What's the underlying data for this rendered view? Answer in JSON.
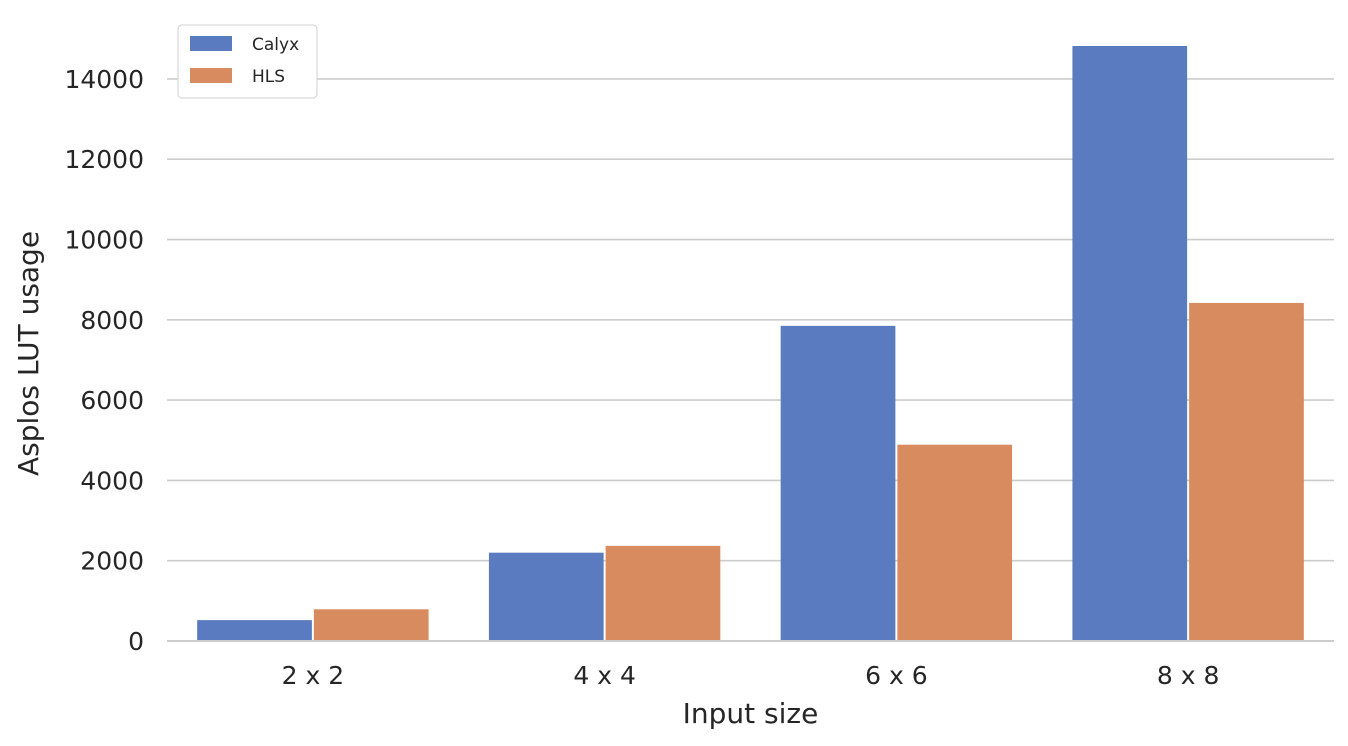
{
  "chart_data": {
    "type": "bar",
    "title": "",
    "xlabel": "Input size",
    "ylabel": "Asplos LUT usage",
    "categories": [
      "2 x 2",
      "4 x 4",
      "6 x 6",
      "8 x 8"
    ],
    "series": [
      {
        "name": "Calyx",
        "values": [
          520,
          2200,
          7850,
          14820
        ],
        "color": "#5a7bc0"
      },
      {
        "name": "HLS",
        "values": [
          790,
          2370,
          4890,
          8420
        ],
        "color": "#d88b5e"
      }
    ],
    "ylim": [
      0,
      14820
    ],
    "yticks": [
      0,
      2000,
      4000,
      6000,
      8000,
      10000,
      12000,
      14000
    ],
    "grid": true,
    "legend_position": "top-left"
  }
}
